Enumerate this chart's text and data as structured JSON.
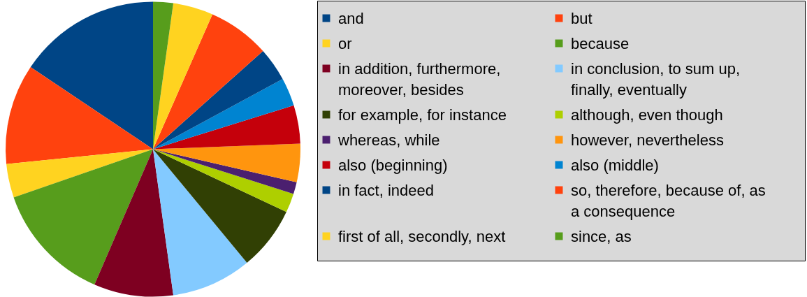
{
  "chart_data": {
    "type": "pie",
    "legend": "right",
    "categories": [
      "and",
      "but",
      "or",
      "because",
      "in addition, furthermore, moreover, besides",
      "in conclusion, to sum up, finally, eventually",
      "for example, for instance",
      "although, even though",
      "whereas, while",
      "however, nevertheless",
      "also (beginning)",
      "also (middle)",
      "in fact, indeed",
      "so, therefore, because of, as a consequence",
      "first of all, secondly, next",
      "since, as"
    ],
    "values": [
      15.6,
      11.0,
      3.7,
      13.2,
      8.7,
      8.8,
      7.0,
      2.1,
      1.3,
      4.2,
      4.2,
      3.1,
      3.7,
      6.8,
      4.4,
      2.2
    ],
    "colors": [
      "#004586",
      "#ff420e",
      "#ffd320",
      "#579d1c",
      "#7e0021",
      "#83caff",
      "#314004",
      "#aecf00",
      "#4b1f6f",
      "#ff950e",
      "#c5000b",
      "#0084d1",
      "#004586",
      "#ff420e",
      "#ffd320",
      "#579d1c"
    ]
  }
}
